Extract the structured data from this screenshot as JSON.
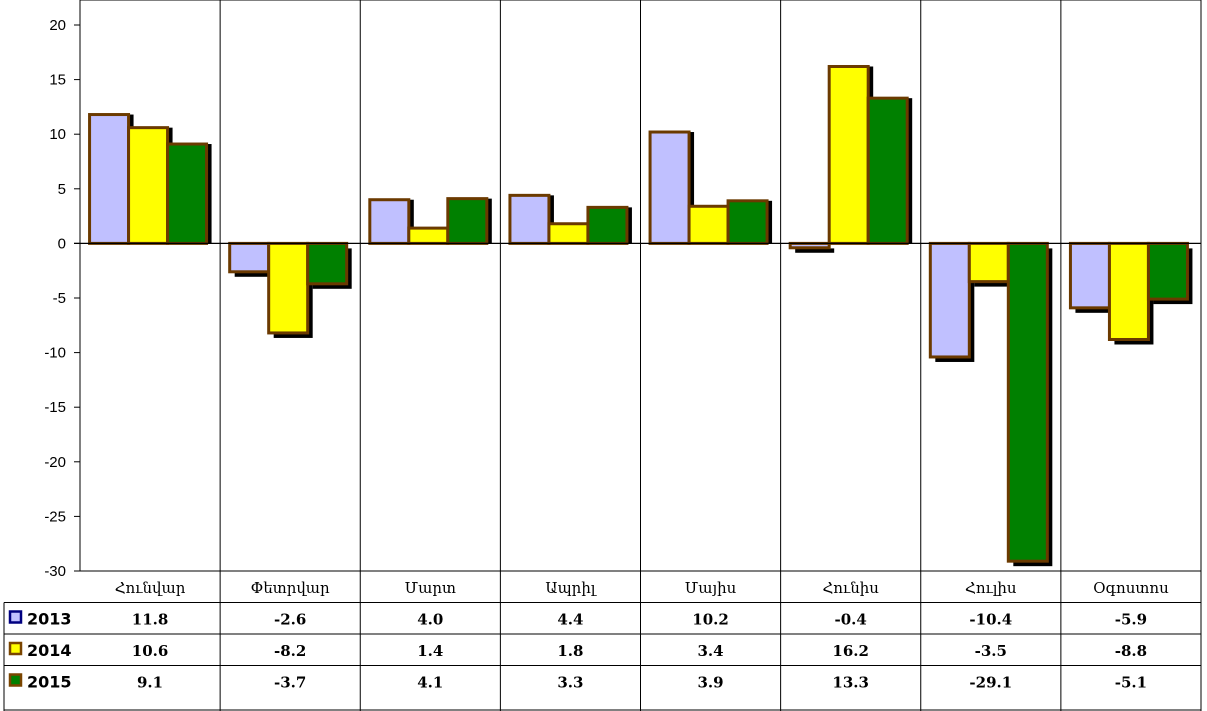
{
  "chart_data": {
    "type": "bar",
    "categories": [
      "Հունվար",
      "Փետրվար",
      "Մարտ",
      "Ապրիլ",
      "Մայիս",
      "Հունիս",
      "Հուլիս",
      "Օգոստոս"
    ],
    "series": [
      {
        "name": "2013",
        "color": "#c0c0ff",
        "marker_color": "#000080",
        "values": [
          11.8,
          -2.6,
          4.0,
          4.4,
          10.2,
          -0.4,
          -10.4,
          -5.9
        ]
      },
      {
        "name": "2014",
        "color": "#ffff00",
        "marker_color": "#7a4500",
        "values": [
          10.6,
          -8.2,
          1.4,
          1.8,
          3.4,
          16.2,
          -3.5,
          -8.8
        ]
      },
      {
        "name": "2015",
        "color": "#008000",
        "marker_color": "#7a4500",
        "values": [
          9.1,
          -3.7,
          4.1,
          3.3,
          3.9,
          13.3,
          -29.1,
          -5.1
        ]
      }
    ],
    "table": [
      [
        "11.8",
        "-2.6",
        "4.0",
        "4.4",
        "10.2",
        "-0.4",
        "-10.4",
        "-5.9"
      ],
      [
        "10.6",
        "-8.2",
        "1.4",
        "1.8",
        "3.4",
        "16.2",
        "-3.5",
        "-8.8"
      ],
      [
        "9.1",
        "-3.7",
        "4.1",
        "3.3",
        "3.9",
        "13.3",
        "-29.1",
        "-5.1"
      ]
    ],
    "y_ticks": [
      "20",
      "15",
      "10",
      "5",
      "0",
      "-5",
      "-10",
      "-15",
      "-20",
      "-25",
      "-30"
    ],
    "ylim": [
      -30,
      20
    ],
    "y_step": 5,
    "grid": "vertical",
    "legend": "data-table",
    "bar_outline_color": "#6b3a00",
    "shadow_color": "#000000"
  }
}
